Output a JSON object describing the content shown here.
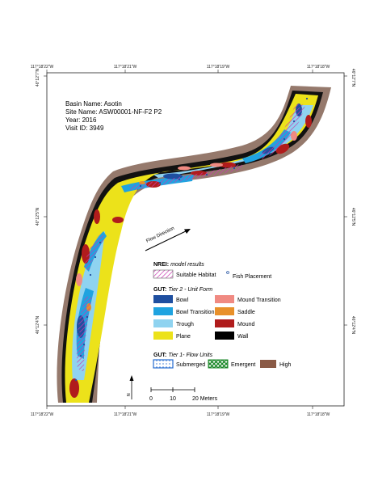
{
  "info": {
    "basin": "Basin Name: Asotin",
    "site": "Site Name: ASW00001-NF-F2 P2",
    "year": "Year: 2016",
    "visit": "Visit ID: 3949"
  },
  "coords": {
    "top": [
      "117°18'22\"W",
      "117°18'21\"W",
      "117°18'19\"W",
      "117°18'18\"W"
    ],
    "bottom": [
      "117°18'22\"W",
      "117°18'21\"W",
      "117°18'19\"W",
      "117°18'18\"W"
    ],
    "left": [
      "46°12'7\"N",
      "46°12'5\"N",
      "46°12'4\"N"
    ],
    "right": [
      "46°12'7\"N",
      "46°12'5\"N",
      "46°12'4\"N"
    ]
  },
  "flow_label": "Flow Direction",
  "legend": {
    "nrei_title": "NREI:",
    "nrei_sub": "model results",
    "suitable": "Suitable Habitat",
    "fish": "Fish Placement",
    "gut2_title": "GUT:",
    "gut2_sub": "Tier 2 - Unit Form",
    "units": [
      {
        "label": "Bowl",
        "color": "#1f4fa0"
      },
      {
        "label": "Mound Transition",
        "color": "#f08a82"
      },
      {
        "label": "Bowl Transition",
        "color": "#1fa3e0"
      },
      {
        "label": "Saddle",
        "color": "#e8902a"
      },
      {
        "label": "Trough",
        "color": "#8fd3f0"
      },
      {
        "label": "Mound",
        "color": "#b01c1c"
      },
      {
        "label": "Plane",
        "color": "#ece21a"
      },
      {
        "label": "Wall",
        "color": "#000000"
      }
    ],
    "gut1_title": "GUT:",
    "gut1_sub": "Tier 1- Flow Units",
    "flow_units": [
      {
        "label": "Submerged",
        "color": "#2a6fd0"
      },
      {
        "label": "Emergent",
        "color": "#1f8a2c"
      },
      {
        "label": "High",
        "color": "#8a5a46"
      }
    ]
  },
  "scale": {
    "labels": [
      "0",
      "10",
      "20 Meters"
    ],
    "north": "N"
  }
}
